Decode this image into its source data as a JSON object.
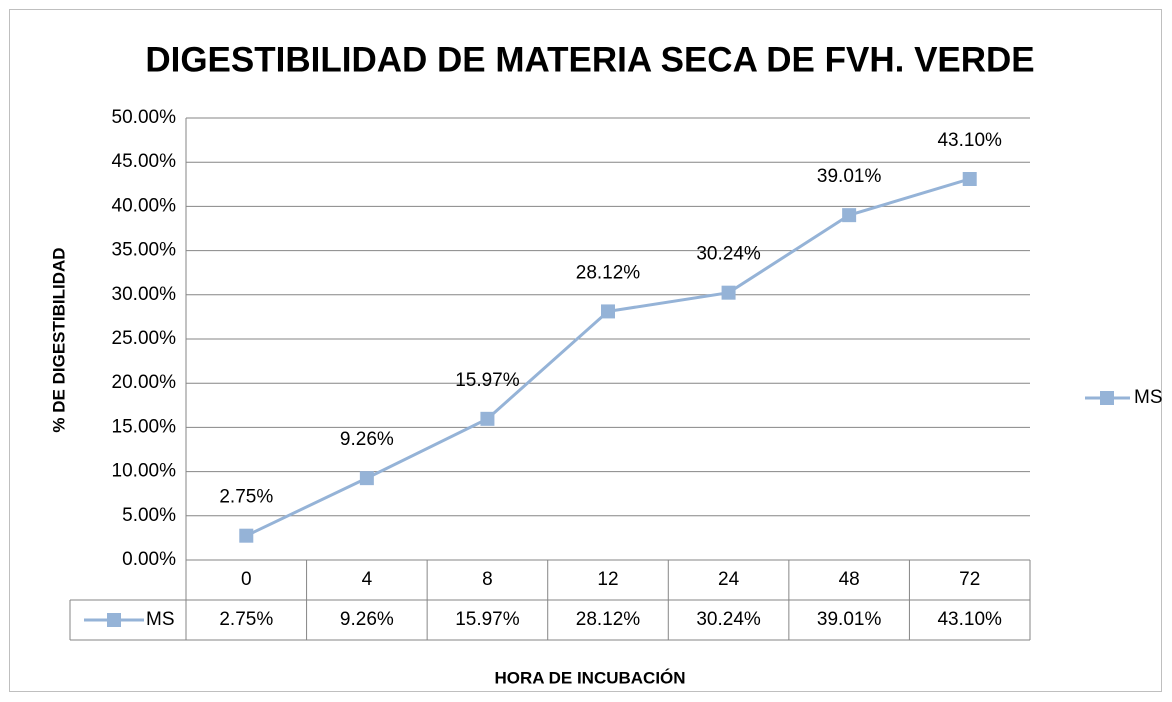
{
  "chart_data": {
    "type": "line",
    "title": "DIGESTIBILIDAD DE MATERIA SECA DE FVH. VERDE",
    "x_label": "HORA DE INCUBACIÓN",
    "y_label": "% DE DIGESTIBILIDAD",
    "categories": [
      "0",
      "4",
      "8",
      "12",
      "24",
      "48",
      "72"
    ],
    "series": [
      {
        "name": "MS",
        "color": "#95b3d7",
        "values": [
          2.75,
          9.26,
          15.97,
          28.12,
          30.24,
          39.01,
          43.1
        ],
        "value_labels": [
          "2.75%",
          "9.26%",
          "15.97%",
          "28.12%",
          "30.24%",
          "39.01%",
          "43.10%"
        ]
      }
    ],
    "ylim": [
      0,
      50
    ],
    "yticks": [
      {
        "value": 0,
        "label": "0.00%"
      },
      {
        "value": 5,
        "label": "5.00%"
      },
      {
        "value": 10,
        "label": "10.00%"
      },
      {
        "value": 15,
        "label": "15.00%"
      },
      {
        "value": 20,
        "label": "20.00%"
      },
      {
        "value": 25,
        "label": "25.00%"
      },
      {
        "value": 30,
        "label": "30.00%"
      },
      {
        "value": 35,
        "label": "35.00%"
      },
      {
        "value": 40,
        "label": "40.00%"
      },
      {
        "value": 45,
        "label": "45.00%"
      },
      {
        "value": 50,
        "label": "50.00%"
      }
    ],
    "grid": true,
    "legend": "right",
    "data_table": true
  }
}
